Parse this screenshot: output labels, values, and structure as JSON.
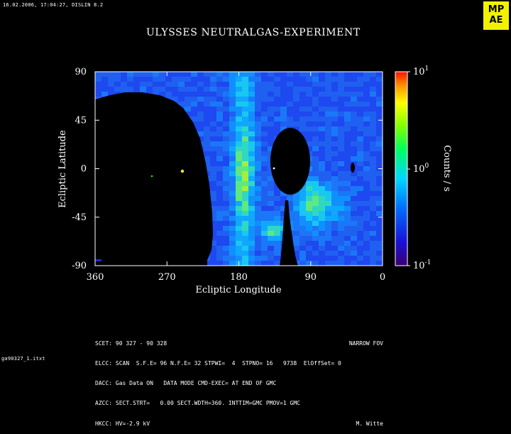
{
  "header": {
    "timestamp": "16.02.2006, 17:04:27, DISLIN 8.2",
    "logo_line1": "MP",
    "logo_line2": "AE"
  },
  "title": "ULYSSES NEUTRALGAS-EXPERIMENT",
  "footer": {
    "line1": "SCET: 90 327 - 90 328",
    "line1_right": "NARROW FOV",
    "line2": "ELCC: SCAN  S.F.E= 96 N.F.E= 32 STPWI=  4  STPNO= 16   9738  ElOffSet= 0",
    "line3": "DACC: Gas Data ON   DATA MODE CMD-EXEC= AT END OF GMC",
    "line4": "AZCC: SECT.STRT=   0.00 SECT.WDTH=360. INTTIM=GMC PMOV=1 GMC",
    "line5": "HKCC: HV=-2.9 kV",
    "line5_right": "M. Witte",
    "file_id": "ga90327_1.itxt"
  },
  "chart_data": {
    "type": "heatmap",
    "title": "ULYSSES NEUTRALGAS-EXPERIMENT",
    "xlabel": "Ecliptic Longitude",
    "ylabel": "Ecliptic Latitude",
    "xlim": [
      360,
      0
    ],
    "ylim": [
      -90,
      90
    ],
    "x_ticks": [
      "360",
      "270",
      "180",
      "90",
      "0"
    ],
    "y_ticks": [
      "90",
      "45",
      "0",
      "-45",
      "-90"
    ],
    "colorbar": {
      "label": "Counts / s",
      "scale": "log",
      "range": [
        0.1,
        10
      ],
      "tick_labels": [
        {
          "base": "10",
          "exp": "1"
        },
        {
          "base": "10",
          "exp": "0"
        },
        {
          "base": "10",
          "exp": "-1"
        }
      ]
    },
    "colors": {
      "background": "#000000",
      "low": "#1a28e0",
      "mid": "#00d4ff",
      "high": "#ff1a00"
    }
  }
}
